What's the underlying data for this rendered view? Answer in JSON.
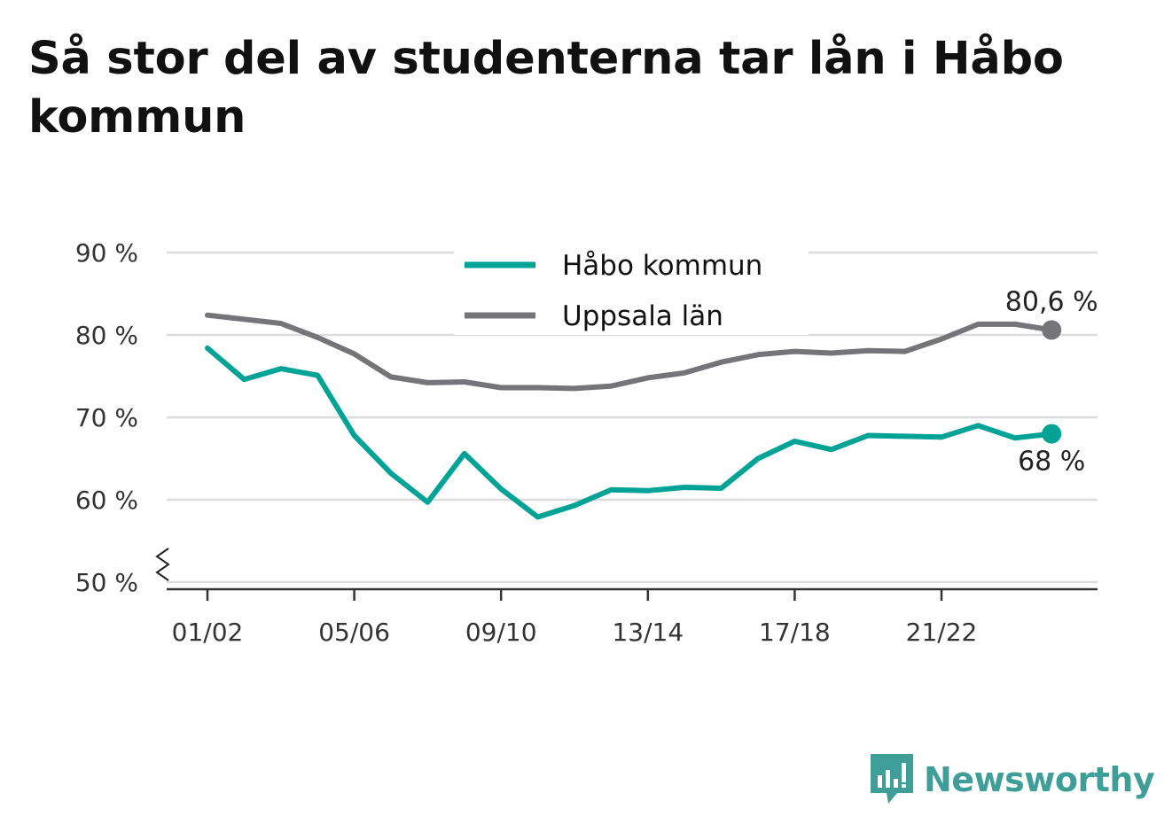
{
  "title": "Så stor del av studenterna tar lån i Håbo kommun",
  "brand": {
    "name": "Newsworthy",
    "icon": "newsworthy-logo-icon",
    "color": "#3f9e97"
  },
  "chart_data": {
    "type": "line",
    "title": "Så stor del av studenterna tar lån i Håbo kommun",
    "xlabel": "",
    "ylabel": "",
    "ylim": [
      50,
      90
    ],
    "y_ticks": [
      "90 %",
      "80 %",
      "70 %",
      "60 %",
      "50 %"
    ],
    "y_tick_values": [
      90,
      80,
      70,
      60,
      50
    ],
    "axis_break": true,
    "grid": true,
    "legend_position": "top-center",
    "categories": [
      "01/02",
      "02/03",
      "03/04",
      "04/05",
      "05/06",
      "06/07",
      "07/08",
      "08/09",
      "09/10",
      "10/11",
      "11/12",
      "12/13",
      "13/14",
      "14/15",
      "15/16",
      "16/17",
      "17/18",
      "18/19",
      "19/20",
      "20/21",
      "21/22",
      "22/23",
      "23/24",
      "24/25"
    ],
    "x_tick_labels": [
      "01/02",
      "05/06",
      "09/10",
      "13/14",
      "17/18",
      "21/22"
    ],
    "x_tick_indices": [
      0,
      4,
      8,
      12,
      16,
      20
    ],
    "series": [
      {
        "name": "Håbo kommun",
        "color": "#00a396",
        "values": [
          78.4,
          74.6,
          75.9,
          75.1,
          67.8,
          63.2,
          59.7,
          65.6,
          61.3,
          57.9,
          59.3,
          61.2,
          61.1,
          61.5,
          61.4,
          65.0,
          67.1,
          66.1,
          67.8,
          67.7,
          67.6,
          69.0,
          67.5,
          68.0
        ],
        "end_label": "68 %"
      },
      {
        "name": "Uppsala län",
        "color": "#757478",
        "values": [
          82.4,
          81.9,
          81.4,
          79.7,
          77.7,
          74.9,
          74.2,
          74.3,
          73.6,
          73.6,
          73.5,
          73.8,
          74.8,
          75.4,
          76.7,
          77.6,
          78.0,
          77.8,
          78.1,
          78.0,
          79.5,
          81.3,
          81.3,
          80.6
        ],
        "end_label": "80,6 %"
      }
    ]
  }
}
